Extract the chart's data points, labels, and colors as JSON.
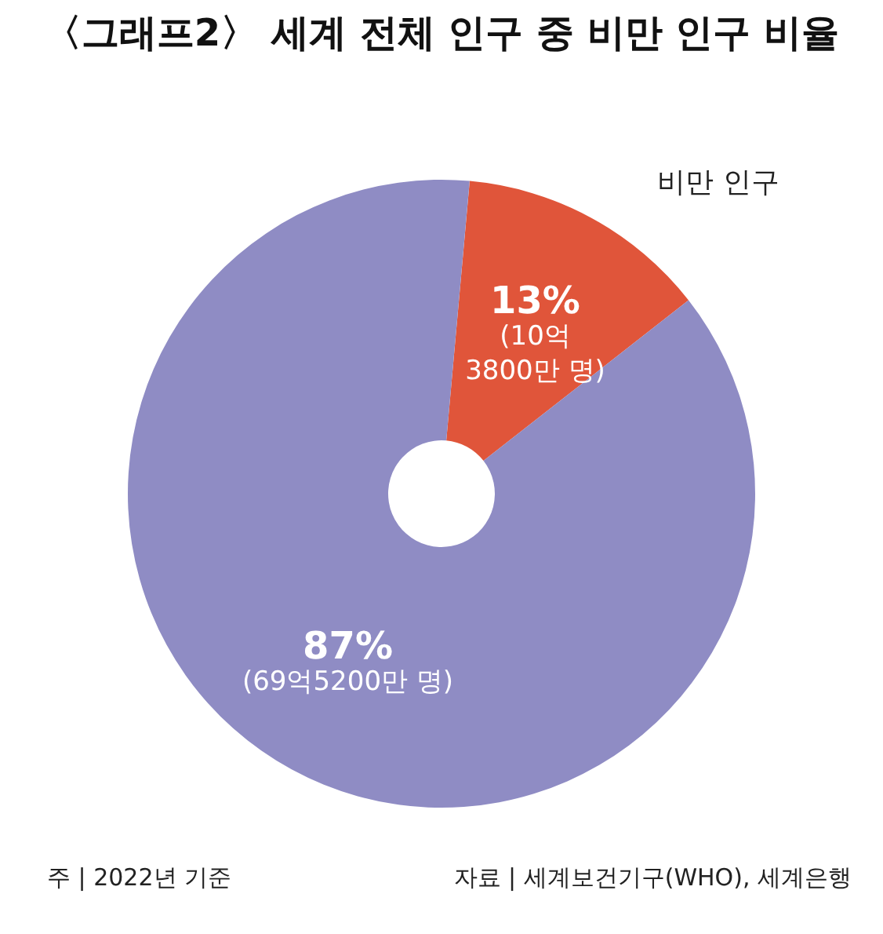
{
  "chart_data": {
    "type": "donut",
    "title": "〈그래프2〉 세계 전체 인구 중 비만 인구 비율",
    "categories": [
      "비만 인구",
      null
    ],
    "values": [
      13,
      87
    ],
    "colors": [
      "#e0553a",
      "#8f8cc4"
    ],
    "value_labels": [
      "13%\n(10억\n3800만 명)",
      "87%\n(69억5200만 명)"
    ],
    "annotations": [
      "주 | 2022년 기준",
      "자료 | 세계보건기구(WHO), 세계은행"
    ],
    "legend": false
  }
}
